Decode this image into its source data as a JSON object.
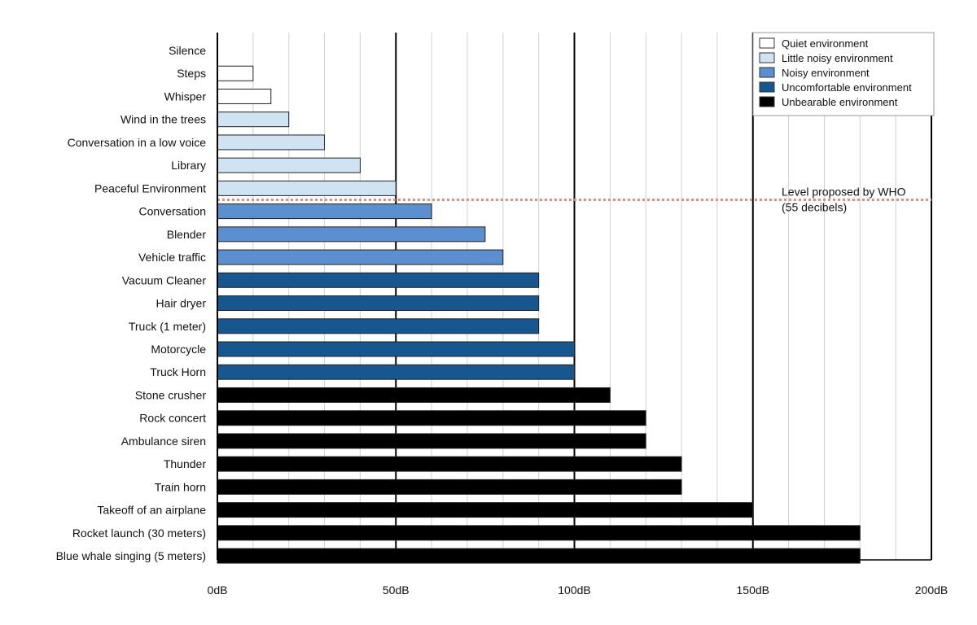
{
  "chart_data": {
    "type": "bar",
    "orientation": "horizontal",
    "categories": [
      "Silence",
      "Steps",
      "Whisper",
      "Wind in the trees",
      "Conversation in a low voice",
      "Library",
      "Peaceful Environment",
      "Conversation",
      "Blender",
      "Vehicle traffic",
      "Vacuum Cleaner",
      "Hair dryer",
      "Truck (1 meter)",
      "Motorcycle",
      "Truck Horn",
      "Stone crusher",
      "Rock concert",
      "Ambulance siren",
      "Thunder",
      "Train horn",
      "Takeoff of an airplane",
      "Rocket launch (30 meters)",
      "Blue whale singing (5 meters)"
    ],
    "values": [
      0,
      10,
      15,
      20,
      30,
      40,
      50,
      60,
      75,
      80,
      90,
      90,
      90,
      100,
      100,
      110,
      120,
      120,
      130,
      130,
      150,
      180,
      180
    ],
    "groups": [
      "quiet",
      "quiet",
      "quiet",
      "little",
      "little",
      "little",
      "little",
      "noisy",
      "noisy",
      "noisy",
      "uncomfortable",
      "uncomfortable",
      "uncomfortable",
      "uncomfortable",
      "uncomfortable",
      "unbearable",
      "unbearable",
      "unbearable",
      "unbearable",
      "unbearable",
      "unbearable",
      "unbearable",
      "unbearable"
    ],
    "legend": [
      {
        "key": "quiet",
        "label": "Quiet environment",
        "color": "#ffffff"
      },
      {
        "key": "little",
        "label": "Little noisy environment",
        "color": "#cfe3f3"
      },
      {
        "key": "noisy",
        "label": "Noisy environment",
        "color": "#5b8fcf"
      },
      {
        "key": "uncomfortable",
        "label": "Uncomfortable environment",
        "color": "#17568f"
      },
      {
        "key": "unbearable",
        "label": "Unbearable environment",
        "color": "#000000"
      }
    ],
    "legend_position": "top-right",
    "xlim": [
      0,
      200
    ],
    "x_ticks": [
      {
        "value": 0,
        "label": "0dB"
      },
      {
        "value": 50,
        "label": "50dB"
      },
      {
        "value": 100,
        "label": "100dB"
      },
      {
        "value": 150,
        "label": "150dB"
      },
      {
        "value": 200,
        "label": "200dB"
      }
    ],
    "minor_grid_step": 10,
    "reference_line": {
      "value": 55,
      "between_categories": [
        "Peaceful Environment",
        "Conversation"
      ],
      "label_line1": "Level proposed by WHO",
      "label_line2": "(55 decibels)",
      "color": "#e88a86"
    },
    "grid": true
  }
}
